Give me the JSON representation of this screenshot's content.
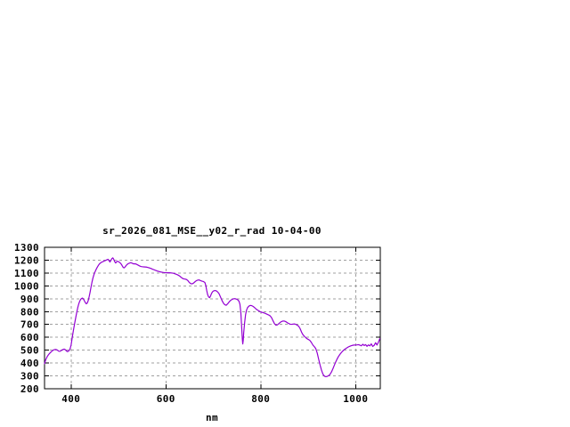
{
  "chart_data": {
    "type": "line",
    "title": "sr_2026_081_MSE__y02_r_rad 10-04-00",
    "xlabel": "nm",
    "ylabel": "",
    "xlim": [
      344,
      1052
    ],
    "ylim": [
      200,
      1300
    ],
    "xticks": [
      400,
      600,
      800,
      1000
    ],
    "yticks": [
      200,
      300,
      400,
      500,
      600,
      700,
      800,
      900,
      1000,
      1100,
      1200,
      1300
    ],
    "grid": true,
    "legend": "none",
    "colors": {
      "line": "#9400d3",
      "grid": "#a0a0a0",
      "frame": "#000000",
      "text": "#000000",
      "background": "#ffffff"
    },
    "points": [
      [
        344,
        395
      ],
      [
        346,
        420
      ],
      [
        348,
        438
      ],
      [
        350,
        452
      ],
      [
        352,
        463
      ],
      [
        354,
        472
      ],
      [
        356,
        480
      ],
      [
        358,
        487
      ],
      [
        360,
        494
      ],
      [
        362,
        499
      ],
      [
        364,
        503
      ],
      [
        366,
        505
      ],
      [
        368,
        505
      ],
      [
        370,
        503
      ],
      [
        372,
        498
      ],
      [
        374,
        492
      ],
      [
        376,
        491
      ],
      [
        378,
        494
      ],
      [
        380,
        499
      ],
      [
        382,
        503
      ],
      [
        384,
        507
      ],
      [
        386,
        508
      ],
      [
        388,
        503
      ],
      [
        390,
        495
      ],
      [
        392,
        489
      ],
      [
        394,
        491
      ],
      [
        396,
        498
      ],
      [
        398,
        512
      ],
      [
        400,
        540
      ],
      [
        402,
        588
      ],
      [
        404,
        634
      ],
      [
        406,
        677
      ],
      [
        408,
        718
      ],
      [
        410,
        757
      ],
      [
        412,
        795
      ],
      [
        414,
        830
      ],
      [
        416,
        858
      ],
      [
        418,
        879
      ],
      [
        420,
        894
      ],
      [
        422,
        902
      ],
      [
        424,
        905
      ],
      [
        426,
        898
      ],
      [
        428,
        884
      ],
      [
        430,
        870
      ],
      [
        432,
        861
      ],
      [
        434,
        866
      ],
      [
        436,
        884
      ],
      [
        438,
        914
      ],
      [
        440,
        950
      ],
      [
        442,
        990
      ],
      [
        444,
        1028
      ],
      [
        446,
        1060
      ],
      [
        448,
        1085
      ],
      [
        450,
        1105
      ],
      [
        452,
        1122
      ],
      [
        454,
        1137
      ],
      [
        456,
        1150
      ],
      [
        458,
        1162
      ],
      [
        460,
        1172
      ],
      [
        462,
        1178
      ],
      [
        464,
        1183
      ],
      [
        466,
        1187
      ],
      [
        468,
        1190
      ],
      [
        470,
        1194
      ],
      [
        472,
        1197
      ],
      [
        474,
        1200
      ],
      [
        476,
        1204
      ],
      [
        478,
        1207
      ],
      [
        480,
        1196
      ],
      [
        482,
        1186
      ],
      [
        484,
        1198
      ],
      [
        486,
        1212
      ],
      [
        488,
        1218
      ],
      [
        490,
        1206
      ],
      [
        492,
        1188
      ],
      [
        494,
        1178
      ],
      [
        496,
        1188
      ],
      [
        498,
        1192
      ],
      [
        500,
        1188
      ],
      [
        502,
        1183
      ],
      [
        504,
        1177
      ],
      [
        506,
        1168
      ],
      [
        508,
        1155
      ],
      [
        510,
        1143
      ],
      [
        512,
        1140
      ],
      [
        514,
        1148
      ],
      [
        516,
        1158
      ],
      [
        518,
        1166
      ],
      [
        520,
        1172
      ],
      [
        523,
        1177
      ],
      [
        526,
        1180
      ],
      [
        529,
        1176
      ],
      [
        532,
        1171
      ],
      [
        535,
        1172
      ],
      [
        538,
        1168
      ],
      [
        541,
        1162
      ],
      [
        544,
        1156
      ],
      [
        547,
        1151
      ],
      [
        550,
        1149
      ],
      [
        553,
        1148
      ],
      [
        556,
        1147
      ],
      [
        559,
        1146
      ],
      [
        562,
        1143
      ],
      [
        565,
        1140
      ],
      [
        568,
        1136
      ],
      [
        571,
        1131
      ],
      [
        574,
        1127
      ],
      [
        577,
        1122
      ],
      [
        580,
        1118
      ],
      [
        583,
        1114
      ],
      [
        586,
        1111
      ],
      [
        589,
        1108
      ],
      [
        592,
        1106
      ],
      [
        595,
        1104
      ],
      [
        598,
        1103
      ],
      [
        601,
        1102
      ],
      [
        604,
        1102
      ],
      [
        607,
        1102
      ],
      [
        610,
        1101
      ],
      [
        613,
        1100
      ],
      [
        616,
        1098
      ],
      [
        619,
        1094
      ],
      [
        622,
        1090
      ],
      [
        625,
        1085
      ],
      [
        628,
        1079
      ],
      [
        631,
        1070
      ],
      [
        634,
        1061
      ],
      [
        637,
        1055
      ],
      [
        640,
        1053
      ],
      [
        643,
        1050
      ],
      [
        646,
        1042
      ],
      [
        649,
        1028
      ],
      [
        652,
        1018
      ],
      [
        655,
        1016
      ],
      [
        658,
        1021
      ],
      [
        661,
        1031
      ],
      [
        664,
        1040
      ],
      [
        667,
        1045
      ],
      [
        670,
        1046
      ],
      [
        673,
        1041
      ],
      [
        676,
        1037
      ],
      [
        679,
        1034
      ],
      [
        682,
        1027
      ],
      [
        684,
        1004
      ],
      [
        686,
        964
      ],
      [
        688,
        931
      ],
      [
        690,
        914
      ],
      [
        692,
        908
      ],
      [
        694,
        921
      ],
      [
        696,
        940
      ],
      [
        698,
        953
      ],
      [
        700,
        960
      ],
      [
        703,
        964
      ],
      [
        706,
        962
      ],
      [
        709,
        953
      ],
      [
        712,
        939
      ],
      [
        715,
        914
      ],
      [
        718,
        888
      ],
      [
        721,
        867
      ],
      [
        724,
        854
      ],
      [
        727,
        849
      ],
      [
        730,
        860
      ],
      [
        733,
        874
      ],
      [
        736,
        886
      ],
      [
        739,
        894
      ],
      [
        742,
        899
      ],
      [
        745,
        901
      ],
      [
        748,
        898
      ],
      [
        751,
        893
      ],
      [
        754,
        881
      ],
      [
        756,
        858
      ],
      [
        758,
        790
      ],
      [
        760,
        660
      ],
      [
        761,
        590
      ],
      [
        762,
        548
      ],
      [
        763,
        577
      ],
      [
        764,
        636
      ],
      [
        766,
        716
      ],
      [
        768,
        778
      ],
      [
        770,
        812
      ],
      [
        772,
        830
      ],
      [
        775,
        843
      ],
      [
        778,
        848
      ],
      [
        781,
        846
      ],
      [
        784,
        840
      ],
      [
        787,
        831
      ],
      [
        790,
        820
      ],
      [
        793,
        812
      ],
      [
        796,
        805
      ],
      [
        799,
        799
      ],
      [
        802,
        795
      ],
      [
        805,
        792
      ],
      [
        808,
        788
      ],
      [
        811,
        783
      ],
      [
        814,
        778
      ],
      [
        817,
        773
      ],
      [
        820,
        766
      ],
      [
        823,
        751
      ],
      [
        826,
        727
      ],
      [
        829,
        705
      ],
      [
        832,
        694
      ],
      [
        835,
        697
      ],
      [
        838,
        706
      ],
      [
        841,
        716
      ],
      [
        844,
        723
      ],
      [
        847,
        727
      ],
      [
        850,
        726
      ],
      [
        853,
        721
      ],
      [
        856,
        714
      ],
      [
        859,
        707
      ],
      [
        862,
        702
      ],
      [
        865,
        701
      ],
      [
        868,
        703
      ],
      [
        871,
        704
      ],
      [
        874,
        701
      ],
      [
        877,
        694
      ],
      [
        880,
        686
      ],
      [
        883,
        667
      ],
      [
        886,
        640
      ],
      [
        889,
        620
      ],
      [
        892,
        608
      ],
      [
        895,
        597
      ],
      [
        898,
        588
      ],
      [
        901,
        582
      ],
      [
        904,
        574
      ],
      [
        907,
        558
      ],
      [
        910,
        539
      ],
      [
        913,
        527
      ],
      [
        916,
        512
      ],
      [
        919,
        478
      ],
      [
        922,
        430
      ],
      [
        925,
        385
      ],
      [
        928,
        345
      ],
      [
        931,
        314
      ],
      [
        934,
        298
      ],
      [
        937,
        294
      ],
      [
        940,
        296
      ],
      [
        943,
        302
      ],
      [
        946,
        312
      ],
      [
        949,
        330
      ],
      [
        952,
        355
      ],
      [
        955,
        382
      ],
      [
        958,
        408
      ],
      [
        961,
        432
      ],
      [
        964,
        452
      ],
      [
        967,
        468
      ],
      [
        970,
        482
      ],
      [
        973,
        494
      ],
      [
        976,
        504
      ],
      [
        979,
        512
      ],
      [
        982,
        519
      ],
      [
        985,
        526
      ],
      [
        988,
        531
      ],
      [
        991,
        535
      ],
      [
        994,
        538
      ],
      [
        997,
        540
      ],
      [
        1000,
        540
      ],
      [
        1003,
        541
      ],
      [
        1006,
        543
      ],
      [
        1009,
        539
      ],
      [
        1012,
        534
      ],
      [
        1015,
        546
      ],
      [
        1018,
        536
      ],
      [
        1021,
        543
      ],
      [
        1024,
        530
      ],
      [
        1027,
        541
      ],
      [
        1030,
        534
      ],
      [
        1033,
        549
      ],
      [
        1036,
        529
      ],
      [
        1039,
        537
      ],
      [
        1042,
        558
      ],
      [
        1045,
        540
      ],
      [
        1048,
        562
      ],
      [
        1051,
        590
      ]
    ]
  }
}
